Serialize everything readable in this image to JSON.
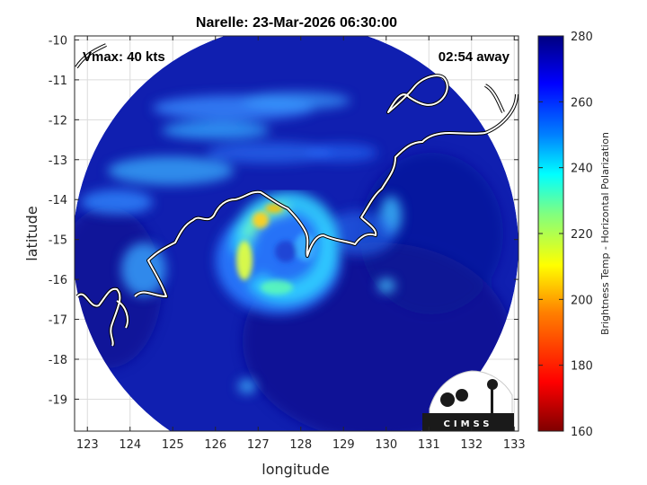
{
  "title": "Narelle: 23-Mar-2026 06:30:00",
  "xlabel": "longitude",
  "ylabel": "latitude",
  "annotations": {
    "vmax": "Vmax: 40 kts",
    "time_away": "02:54 away"
  },
  "logo_text": "CIMSS",
  "colorbar": {
    "label": "Brightness Temp - Horizontal Polarization",
    "min": 160,
    "max": 280,
    "ticks": [
      "160",
      "180",
      "200",
      "220",
      "240",
      "260",
      "280"
    ],
    "colormap": [
      "#7f0000",
      "#ff0000",
      "#ff8000",
      "#ffff00",
      "#80ff80",
      "#00ffff",
      "#0080ff",
      "#0000ff",
      "#000080"
    ]
  },
  "axes": {
    "xlim": [
      122.7,
      133.1
    ],
    "ylim": [
      -19.8,
      -9.9
    ],
    "xticks": [
      "123",
      "124",
      "125",
      "126",
      "127",
      "128",
      "129",
      "130",
      "131",
      "132",
      "133"
    ],
    "yticks": [
      "-10",
      "-11",
      "-12",
      "-13",
      "-14",
      "-15",
      "-16",
      "-17",
      "-18",
      "-19"
    ],
    "grid": true
  },
  "colors": {
    "swath_background": "#101fb0",
    "coastline": "#ffffff",
    "coast_edge": "#000000"
  }
}
